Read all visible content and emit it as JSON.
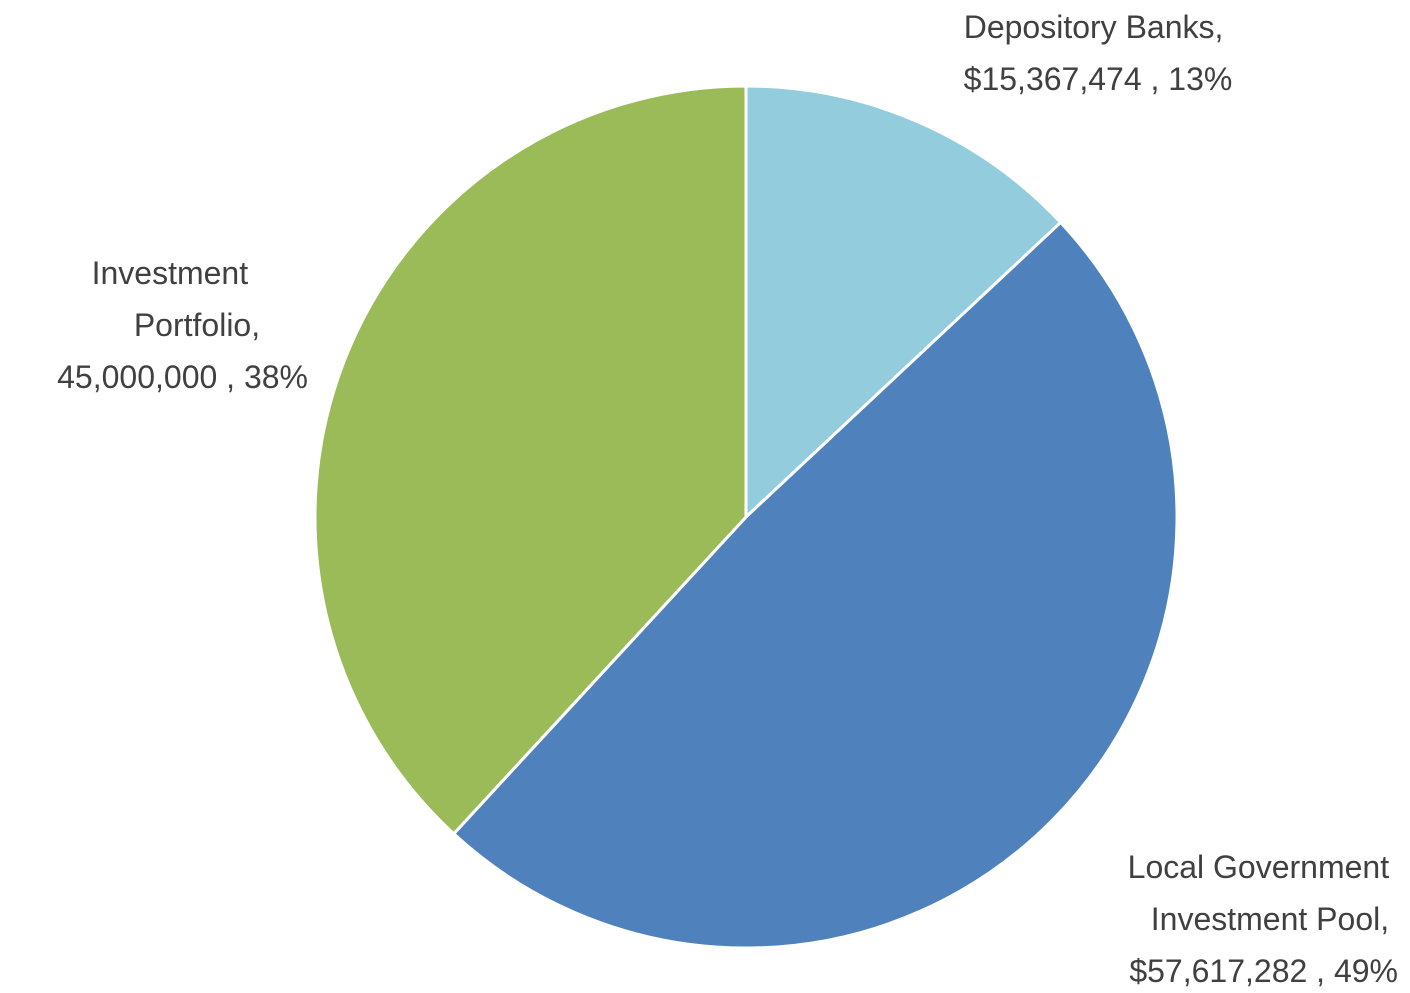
{
  "chart_data": {
    "type": "pie",
    "start_angle_deg": 0,
    "direction": "clockwise",
    "slices": [
      {
        "category": "Depository Banks",
        "value": 15367474,
        "percent": 13,
        "color": "#93CDDD",
        "label_lines": [
          "Depository Banks,",
          "$15,367,474 , 13%"
        ]
      },
      {
        "category": "Local Government Investment Pool",
        "value": 57617282,
        "percent": 49,
        "color": "#4F81BD",
        "label_lines": [
          "Local Government",
          "Investment Pool,",
          "$57,617,282 , 49%"
        ]
      },
      {
        "category": "Investment Portfolio",
        "value": 45000000,
        "percent": 38,
        "color": "#9BBB59",
        "label_lines": [
          "Investment",
          "Portfolio,",
          "45,000,000 , 38%"
        ]
      }
    ]
  }
}
